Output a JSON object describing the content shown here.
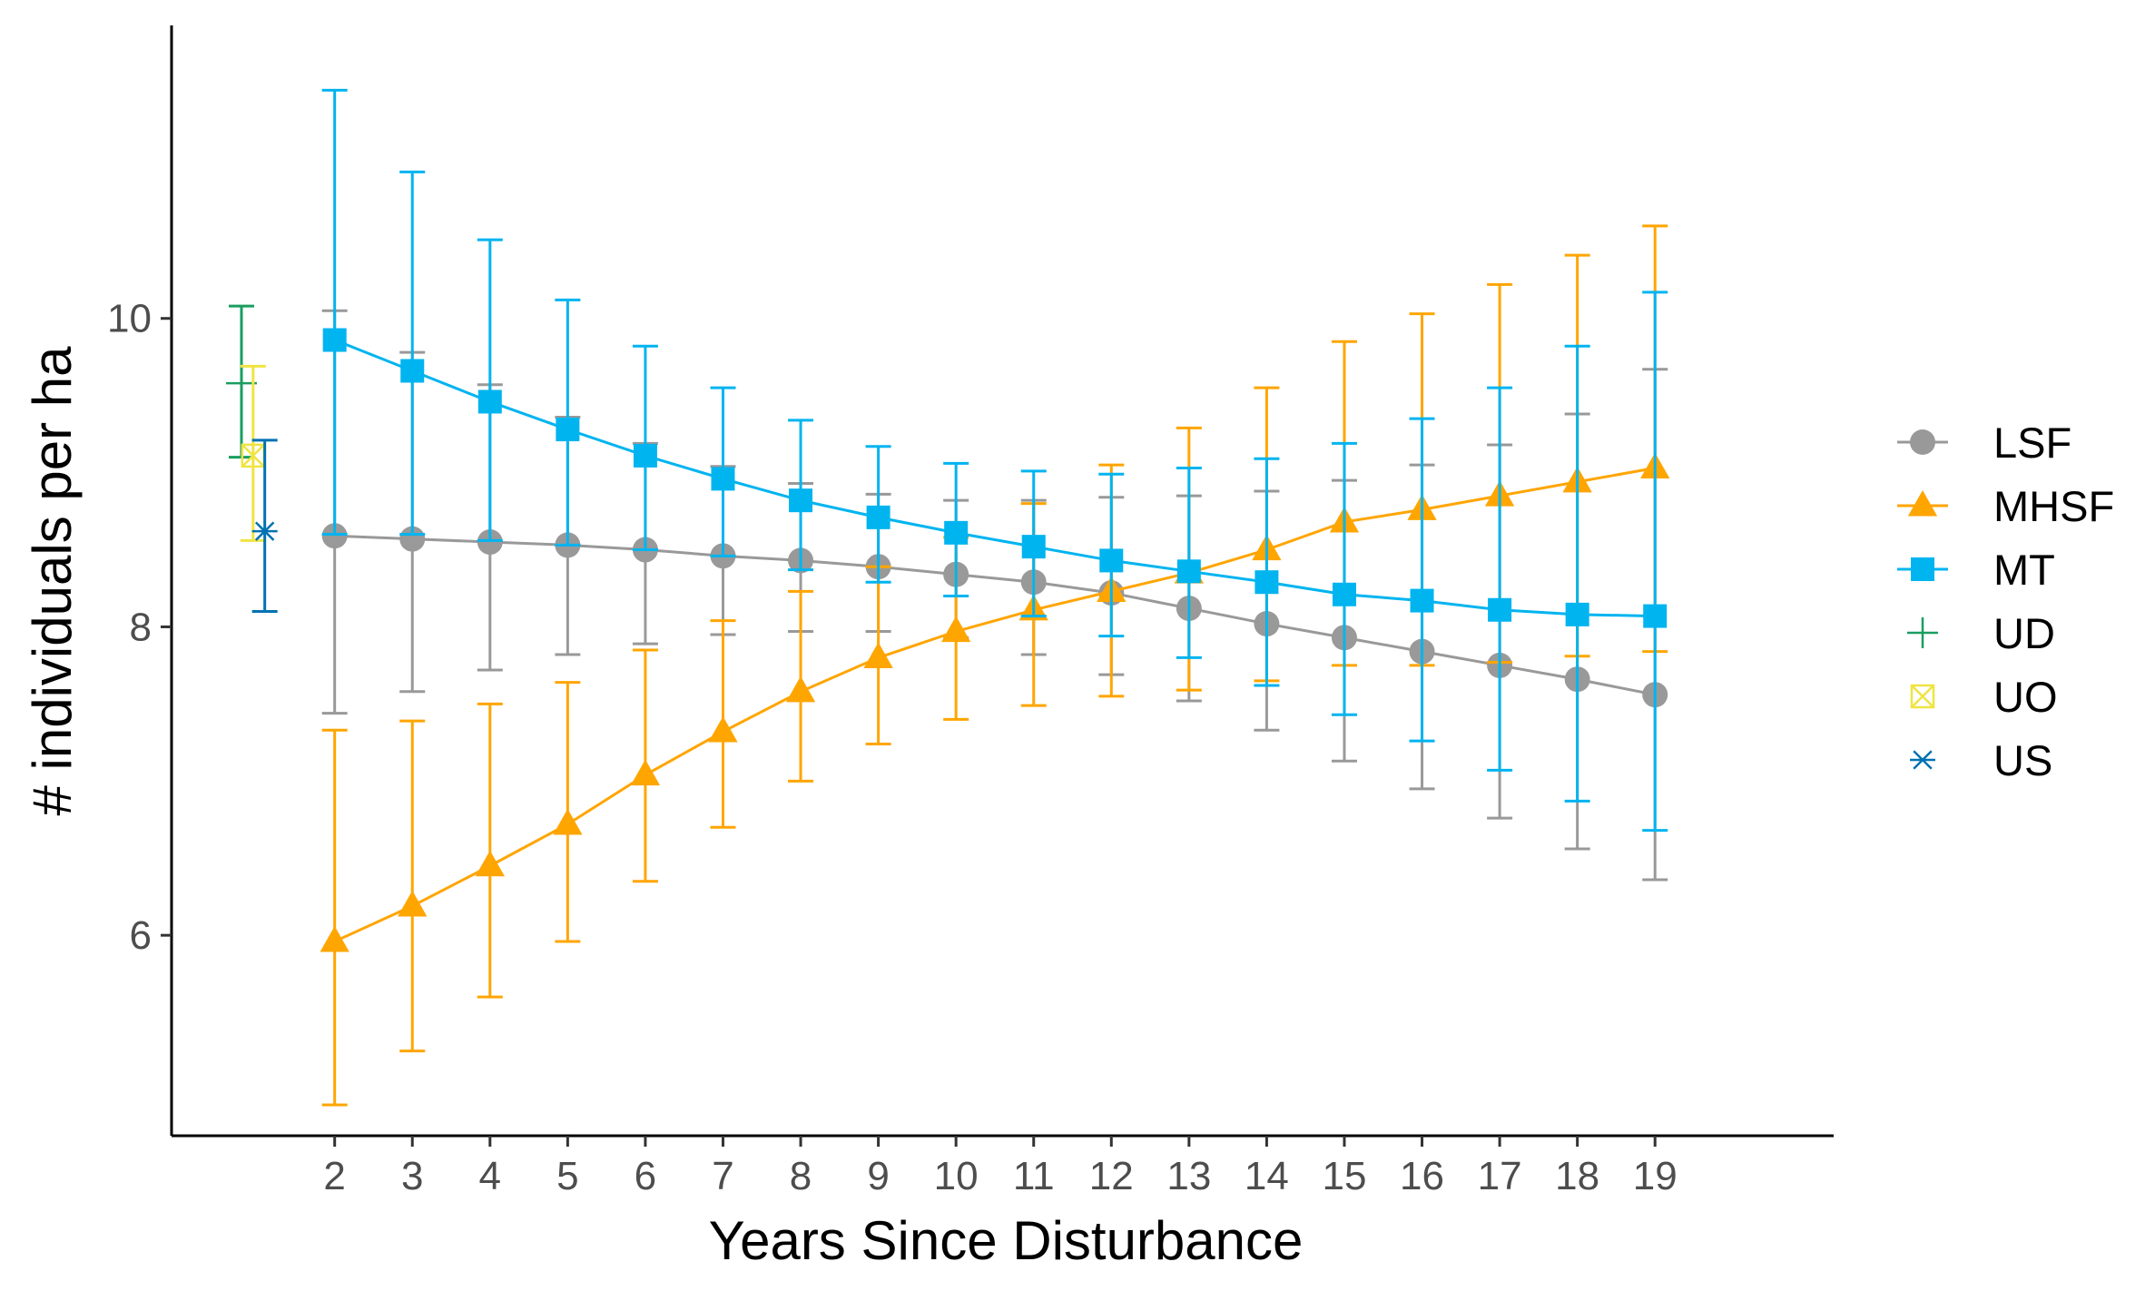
{
  "chart_data": {
    "type": "line",
    "title": "",
    "xlabel": "Years Since Disturbance",
    "ylabel": "# individuals per ha",
    "xlim": [
      -0.1,
      21.3
    ],
    "ylim": [
      4.7,
      11.9
    ],
    "x_ticks": [
      2,
      3,
      4,
      5,
      6,
      7,
      8,
      9,
      10,
      11,
      12,
      13,
      14,
      15,
      16,
      17,
      18,
      19
    ],
    "y_ticks": [
      6,
      8,
      10
    ],
    "x_tick_labels": [
      "2",
      "3",
      "4",
      "5",
      "6",
      "7",
      "8",
      "9",
      "10",
      "11",
      "12",
      "13",
      "14",
      "15",
      "16",
      "17",
      "18",
      "19"
    ],
    "y_tick_labels": [
      "6",
      "8",
      "10"
    ],
    "grid": false,
    "legend_position": "right",
    "series": [
      {
        "name": "LSF",
        "color": "#999999",
        "marker": "circle",
        "line": true,
        "x": [
          2,
          3,
          4,
          5,
          6,
          7,
          8,
          9,
          10,
          11,
          12,
          13,
          14,
          15,
          16,
          17,
          18,
          19
        ],
        "y": [
          8.59,
          8.57,
          8.55,
          8.53,
          8.5,
          8.46,
          8.43,
          8.39,
          8.34,
          8.29,
          8.22,
          8.12,
          8.02,
          7.93,
          7.84,
          7.75,
          7.66,
          7.56
        ],
        "ymin": [
          7.44,
          7.58,
          7.72,
          7.82,
          7.89,
          7.95,
          7.97,
          7.97,
          7.93,
          7.82,
          7.69,
          7.52,
          7.33,
          7.13,
          6.95,
          6.76,
          6.56,
          6.36
        ],
        "ymax": [
          10.05,
          9.78,
          9.57,
          9.36,
          9.19,
          9.04,
          8.93,
          8.86,
          8.82,
          8.82,
          8.84,
          8.85,
          8.88,
          8.95,
          9.05,
          9.18,
          9.38,
          9.67
        ]
      },
      {
        "name": "MHSF",
        "color": "#FFA500",
        "marker": "triangle",
        "line": true,
        "x": [
          2,
          3,
          4,
          5,
          6,
          7,
          8,
          9,
          10,
          11,
          12,
          13,
          14,
          15,
          16,
          17,
          18,
          19
        ],
        "y": [
          5.96,
          6.19,
          6.45,
          6.72,
          7.04,
          7.32,
          7.58,
          7.8,
          7.97,
          8.11,
          8.23,
          8.35,
          8.5,
          8.68,
          8.76,
          8.85,
          8.94,
          9.03
        ],
        "ymin": [
          4.9,
          5.25,
          5.6,
          5.96,
          6.35,
          6.7,
          7.0,
          7.24,
          7.4,
          7.49,
          7.55,
          7.59,
          7.65,
          7.75,
          7.75,
          7.77,
          7.81,
          7.84
        ],
        "ymax": [
          7.33,
          7.39,
          7.5,
          7.64,
          7.85,
          8.04,
          8.23,
          8.39,
          8.58,
          8.8,
          9.05,
          9.29,
          9.55,
          9.85,
          10.03,
          10.22,
          10.41,
          10.6
        ]
      },
      {
        "name": "MT",
        "color": "#00B4F0",
        "marker": "square",
        "line": true,
        "x": [
          2,
          3,
          4,
          5,
          6,
          7,
          8,
          9,
          10,
          11,
          12,
          13,
          14,
          15,
          16,
          17,
          18,
          19
        ],
        "y": [
          9.86,
          9.66,
          9.46,
          9.28,
          9.11,
          8.96,
          8.82,
          8.71,
          8.61,
          8.52,
          8.43,
          8.36,
          8.29,
          8.21,
          8.17,
          8.11,
          8.08,
          8.07
        ],
        "ymin": [
          8.6,
          8.6,
          8.56,
          8.53,
          8.5,
          8.46,
          8.37,
          8.29,
          8.2,
          8.07,
          7.94,
          7.8,
          7.62,
          7.43,
          7.26,
          7.07,
          6.87,
          6.68
        ],
        "ymax": [
          11.48,
          10.95,
          10.51,
          10.12,
          9.82,
          9.55,
          9.34,
          9.17,
          9.06,
          9.01,
          8.99,
          9.03,
          9.09,
          9.19,
          9.35,
          9.55,
          9.82,
          10.17
        ]
      },
      {
        "name": "UD",
        "color": "#1A9E60",
        "marker": "plus",
        "line": false,
        "x": [
          0.8
        ],
        "y": [
          9.58
        ],
        "ymin": [
          9.1
        ],
        "ymax": [
          10.08
        ]
      },
      {
        "name": "UO",
        "color": "#F0E442",
        "marker": "square-cross",
        "line": false,
        "x": [
          0.95
        ],
        "y": [
          9.11
        ],
        "ymin": [
          8.56
        ],
        "ymax": [
          9.69
        ]
      },
      {
        "name": "US",
        "color": "#0072B2",
        "marker": "asterisk",
        "line": false,
        "x": [
          1.1
        ],
        "y": [
          8.62
        ],
        "ymin": [
          8.1
        ],
        "ymax": [
          9.21
        ]
      }
    ]
  }
}
